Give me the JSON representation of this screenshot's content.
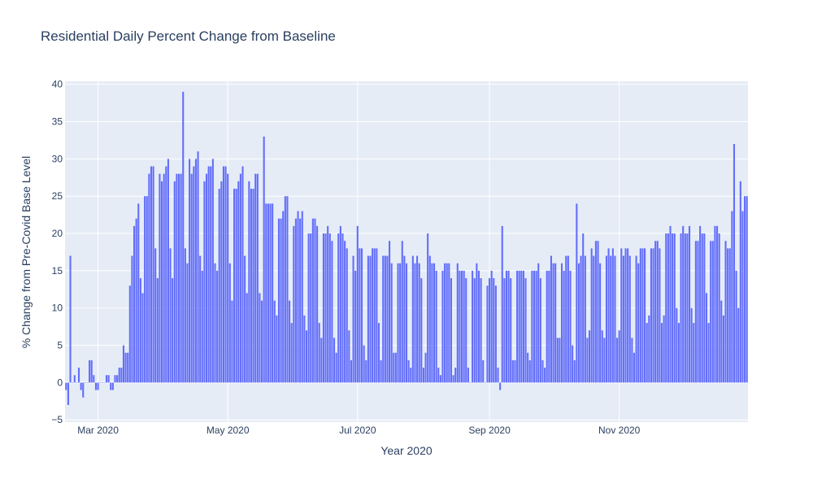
{
  "chart_data": {
    "type": "bar",
    "title": "Residential Daily Percent Change from Baseline",
    "xlabel": "Year 2020",
    "ylabel": "% Change from Pre-Covid Base Level",
    "start_date": "2020-02-15",
    "dates_range": [
      "2020-02-15",
      "2020-12-31"
    ],
    "x_ticks": [
      {
        "date": "2020-03-01",
        "label": "Mar 2020"
      },
      {
        "date": "2020-05-01",
        "label": "May 2020"
      },
      {
        "date": "2020-07-01",
        "label": "Jul 2020"
      },
      {
        "date": "2020-09-01",
        "label": "Sep 2020"
      },
      {
        "date": "2020-11-01",
        "label": "Nov 2020"
      }
    ],
    "y_ticks": [
      -5,
      0,
      5,
      10,
      15,
      20,
      25,
      30,
      35,
      40
    ],
    "ylim": [
      -5.3,
      40.4
    ],
    "grid": true,
    "colors": {
      "bar": "#636efa",
      "plot_bg": "#e5ecf6",
      "grid": "#ffffff",
      "text": "#2a3f5f"
    },
    "values": [
      -1,
      -3,
      17,
      0,
      1,
      0,
      2,
      -1,
      -2,
      0,
      0,
      3,
      3,
      1,
      -1,
      -1,
      0,
      0,
      0,
      1,
      1,
      -1,
      -1,
      1,
      1,
      2,
      2,
      5,
      4,
      4,
      13,
      17,
      21,
      22,
      24,
      14,
      12,
      25,
      25,
      28,
      29,
      29,
      18,
      14,
      28,
      27,
      28,
      29,
      30,
      18,
      14,
      27,
      28,
      28,
      28,
      39,
      18,
      16,
      30,
      28,
      29,
      30,
      31,
      17,
      15,
      27,
      28,
      29,
      29,
      30,
      16,
      15,
      26,
      27,
      29,
      29,
      28,
      16,
      11,
      26,
      26,
      27,
      28,
      29,
      17,
      12,
      27,
      26,
      26,
      28,
      28,
      12,
      11,
      33,
      24,
      24,
      24,
      24,
      11,
      9,
      22,
      22,
      23,
      25,
      25,
      11,
      8,
      21,
      22,
      23,
      22,
      23,
      9,
      7,
      20,
      20,
      22,
      22,
      21,
      8,
      6,
      20,
      20,
      21,
      20,
      19,
      6,
      4,
      20,
      21,
      20,
      19,
      18,
      7,
      3,
      17,
      15,
      21,
      18,
      18,
      5,
      3,
      17,
      17,
      18,
      18,
      18,
      8,
      3,
      17,
      17,
      17,
      19,
      16,
      4,
      4,
      16,
      16,
      19,
      17,
      16,
      3,
      2,
      17,
      16,
      17,
      16,
      14,
      2,
      4,
      20,
      17,
      16,
      16,
      15,
      2,
      1,
      15,
      16,
      16,
      16,
      14,
      1,
      2,
      16,
      15,
      15,
      15,
      14,
      2,
      0,
      15,
      14,
      16,
      15,
      14,
      3,
      0,
      13,
      14,
      15,
      14,
      13,
      2,
      -1,
      21,
      14,
      15,
      15,
      14,
      3,
      3,
      15,
      15,
      15,
      15,
      14,
      4,
      3,
      15,
      15,
      15,
      16,
      14,
      3,
      2,
      15,
      15,
      17,
      16,
      16,
      6,
      6,
      16,
      15,
      17,
      17,
      15,
      5,
      3,
      24,
      16,
      17,
      20,
      17,
      6,
      7,
      18,
      17,
      19,
      19,
      16,
      7,
      6,
      17,
      18,
      17,
      18,
      17,
      6,
      7,
      18,
      17,
      18,
      18,
      17,
      6,
      4,
      17,
      16,
      18,
      18,
      18,
      8,
      9,
      18,
      18,
      19,
      19,
      18,
      8,
      9,
      20,
      20,
      21,
      20,
      20,
      10,
      8,
      20,
      21,
      20,
      20,
      21,
      10,
      8,
      19,
      19,
      21,
      20,
      20,
      12,
      8,
      19,
      19,
      21,
      21,
      20,
      11,
      9,
      19,
      18,
      18,
      23,
      32,
      15,
      10,
      27,
      23,
      25,
      25
    ]
  }
}
